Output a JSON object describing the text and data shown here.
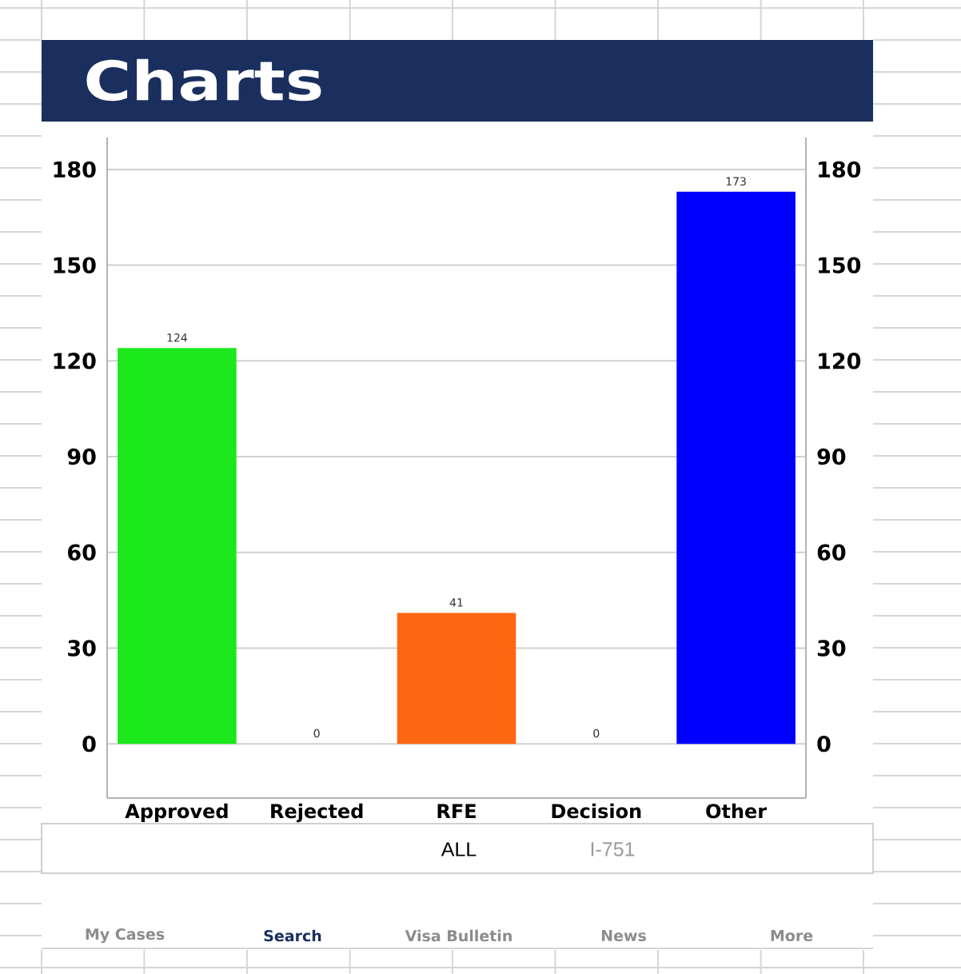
{
  "chart_data": {
    "type": "bar",
    "title": "Charts",
    "categories": [
      "Approved",
      "Rejected",
      "RFE",
      "Decision",
      "Other"
    ],
    "values": [
      124,
      0,
      41,
      0,
      173
    ],
    "colors": [
      "#1ce81c",
      null,
      "#ff6612",
      null,
      "#0000ff"
    ],
    "ylim": [
      -17,
      190
    ],
    "yticks": [
      0,
      30,
      60,
      90,
      120,
      150,
      180
    ],
    "y2lim": [
      -17,
      190
    ],
    "y2ticks": [
      0,
      30,
      60,
      90,
      120,
      150,
      180
    ],
    "grid": "y",
    "data_labels": true,
    "annotations": [
      "ALL",
      "I-751",
      "My Cases",
      "Search",
      "Visa Bulletin",
      "News",
      "More"
    ]
  }
}
